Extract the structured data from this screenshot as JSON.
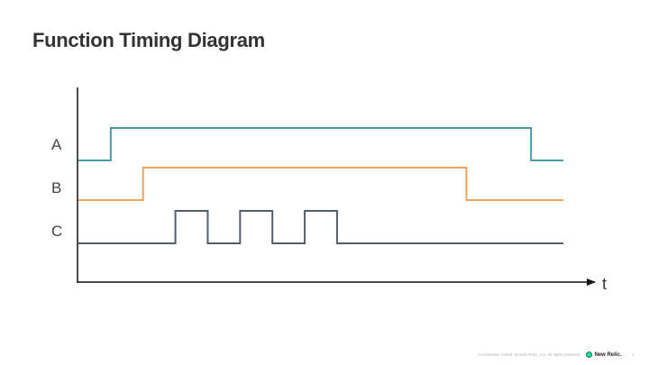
{
  "slide": {
    "title": "Function Timing Diagram"
  },
  "diagram": {
    "x_axis_label": "t",
    "signals": [
      {
        "name": "A",
        "color": "#4a9ba6",
        "transitions": [
          [
            0,
            0
          ],
          [
            1,
            1
          ],
          [
            14,
            0
          ]
        ]
      },
      {
        "name": "B",
        "color": "#f0a55a",
        "transitions": [
          [
            0,
            0
          ],
          [
            2,
            1
          ],
          [
            12,
            0
          ]
        ]
      },
      {
        "name": "C",
        "color": "#4f6170",
        "transitions": [
          [
            0,
            0
          ],
          [
            3,
            1
          ],
          [
            4,
            0
          ],
          [
            5,
            1
          ],
          [
            6,
            0
          ],
          [
            7,
            1
          ],
          [
            8,
            0
          ]
        ]
      }
    ],
    "t_end": 15
  },
  "footer": {
    "copyright": "Confidential ©2008-15 New Relic, Inc. All rights reserved.",
    "logo_text": "New Relic.",
    "page_number": "1",
    "logo_color": "#1ce783"
  }
}
